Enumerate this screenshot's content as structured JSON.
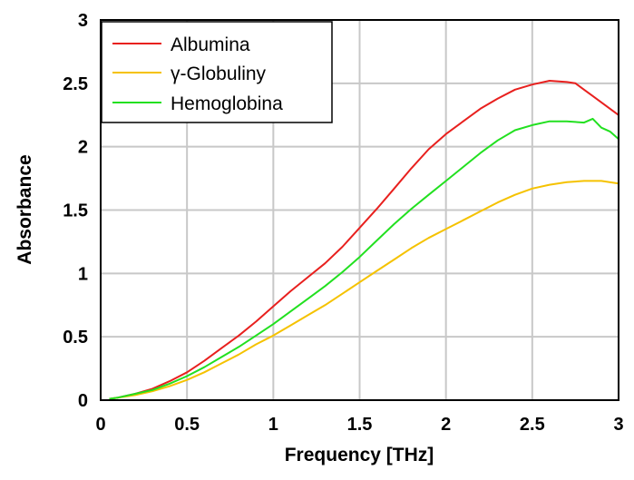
{
  "chart_data": {
    "type": "line",
    "xlabel": "Frequency [THz]",
    "ylabel": "Absorbance",
    "xlim": [
      0,
      3
    ],
    "ylim": [
      0,
      3
    ],
    "xticks": [
      0,
      0.5,
      1,
      1.5,
      2,
      2.5,
      3
    ],
    "xtick_labels": [
      "0",
      "0.5",
      "1",
      "1.5",
      "2",
      "2.5",
      "3"
    ],
    "yticks": [
      0,
      0.5,
      1,
      1.5,
      2,
      2.5,
      3
    ],
    "ytick_labels": [
      "0",
      "0.5",
      "1",
      "1.5",
      "2",
      "2.5",
      "3"
    ],
    "grid": true,
    "legend_position": "top-left",
    "series": [
      {
        "name": "Albumina",
        "color": "#e8201e",
        "x": [
          0.05,
          0.1,
          0.2,
          0.3,
          0.4,
          0.5,
          0.6,
          0.7,
          0.8,
          0.9,
          1.0,
          1.1,
          1.2,
          1.3,
          1.4,
          1.5,
          1.6,
          1.7,
          1.8,
          1.9,
          2.0,
          2.1,
          2.2,
          2.3,
          2.4,
          2.5,
          2.6,
          2.7,
          2.75,
          2.8,
          2.85,
          2.9,
          2.95,
          3.0
        ],
        "y": [
          0.01,
          0.02,
          0.05,
          0.09,
          0.15,
          0.22,
          0.31,
          0.41,
          0.51,
          0.62,
          0.74,
          0.86,
          0.97,
          1.08,
          1.21,
          1.36,
          1.51,
          1.67,
          1.83,
          1.98,
          2.1,
          2.2,
          2.3,
          2.38,
          2.45,
          2.49,
          2.52,
          2.51,
          2.5,
          2.45,
          2.4,
          2.35,
          2.3,
          2.25
        ]
      },
      {
        "name": "γ-Globuliny",
        "color": "#f5c200",
        "x": [
          0.05,
          0.1,
          0.2,
          0.3,
          0.4,
          0.5,
          0.6,
          0.7,
          0.8,
          0.9,
          1.0,
          1.1,
          1.2,
          1.3,
          1.4,
          1.5,
          1.6,
          1.7,
          1.8,
          1.9,
          2.0,
          2.1,
          2.2,
          2.3,
          2.4,
          2.5,
          2.6,
          2.7,
          2.8,
          2.9,
          3.0
        ],
        "y": [
          0.01,
          0.02,
          0.04,
          0.07,
          0.11,
          0.16,
          0.22,
          0.29,
          0.36,
          0.44,
          0.51,
          0.59,
          0.67,
          0.75,
          0.84,
          0.93,
          1.02,
          1.11,
          1.2,
          1.28,
          1.35,
          1.42,
          1.49,
          1.56,
          1.62,
          1.67,
          1.7,
          1.72,
          1.73,
          1.73,
          1.71
        ]
      },
      {
        "name": "Hemoglobina",
        "color": "#22e020",
        "x": [
          0.05,
          0.1,
          0.2,
          0.3,
          0.4,
          0.5,
          0.6,
          0.7,
          0.8,
          0.9,
          1.0,
          1.1,
          1.2,
          1.3,
          1.4,
          1.5,
          1.6,
          1.7,
          1.8,
          1.9,
          2.0,
          2.1,
          2.2,
          2.3,
          2.4,
          2.5,
          2.6,
          2.7,
          2.8,
          2.85,
          2.9,
          2.95,
          3.0
        ],
        "y": [
          0.01,
          0.02,
          0.05,
          0.08,
          0.13,
          0.19,
          0.26,
          0.34,
          0.42,
          0.51,
          0.6,
          0.7,
          0.8,
          0.9,
          1.01,
          1.13,
          1.26,
          1.39,
          1.51,
          1.62,
          1.73,
          1.84,
          1.95,
          2.05,
          2.13,
          2.17,
          2.2,
          2.2,
          2.19,
          2.22,
          2.15,
          2.12,
          2.06
        ]
      }
    ]
  }
}
